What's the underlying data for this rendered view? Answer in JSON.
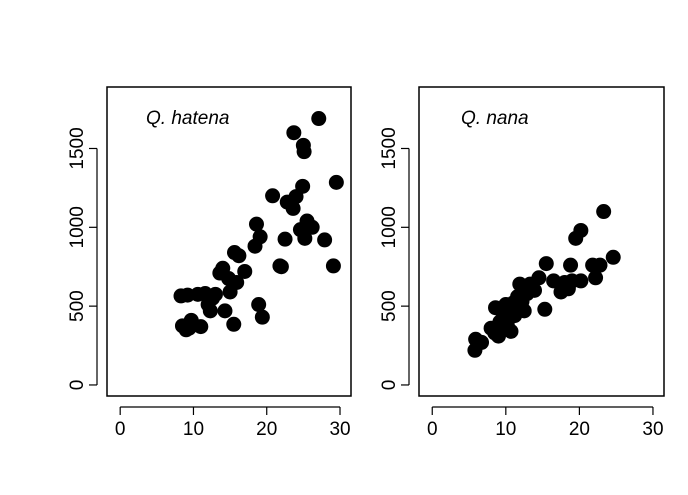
{
  "chart_data": [
    {
      "type": "scatter",
      "title": "Q. hatena",
      "xlabel": "",
      "ylabel": "",
      "xlim": [
        -1.8,
        31.5
      ],
      "ylim": [
        -70,
        1890
      ],
      "xticks": [
        0,
        10,
        20,
        30
      ],
      "yticks": [
        0,
        500,
        1000,
        1500
      ],
      "grid": false,
      "points": [
        [
          8.3,
          565
        ],
        [
          8.5,
          375
        ],
        [
          9.0,
          350
        ],
        [
          9.2,
          570
        ],
        [
          9.4,
          360
        ],
        [
          9.7,
          410
        ],
        [
          10.6,
          575
        ],
        [
          11.0,
          370
        ],
        [
          11.6,
          580
        ],
        [
          12.0,
          510
        ],
        [
          12.3,
          470
        ],
        [
          12.6,
          550
        ],
        [
          13.0,
          575
        ],
        [
          13.6,
          710
        ],
        [
          14.0,
          740
        ],
        [
          14.3,
          470
        ],
        [
          14.8,
          675
        ],
        [
          15.0,
          590
        ],
        [
          15.5,
          385
        ],
        [
          15.6,
          840
        ],
        [
          15.9,
          650
        ],
        [
          16.2,
          820
        ],
        [
          17.0,
          720
        ],
        [
          18.4,
          880
        ],
        [
          18.6,
          1020
        ],
        [
          18.9,
          510
        ],
        [
          19.1,
          940
        ],
        [
          19.4,
          430
        ],
        [
          20.8,
          1200
        ],
        [
          21.8,
          755
        ],
        [
          22.0,
          750
        ],
        [
          22.5,
          925
        ],
        [
          22.8,
          1160
        ],
        [
          23.6,
          1120
        ],
        [
          23.7,
          1600
        ],
        [
          24.0,
          1195
        ],
        [
          24.6,
          985
        ],
        [
          24.9,
          1260
        ],
        [
          25.0,
          1520
        ],
        [
          25.1,
          1480
        ],
        [
          25.2,
          930
        ],
        [
          25.5,
          1040
        ],
        [
          26.2,
          1000
        ],
        [
          27.1,
          1690
        ],
        [
          27.9,
          920
        ],
        [
          29.1,
          755
        ],
        [
          29.5,
          1285
        ]
      ]
    },
    {
      "type": "scatter",
      "title": "Q. nana",
      "xlabel": "",
      "ylabel": "",
      "xlim": [
        -1.8,
        31.5
      ],
      "ylim": [
        -70,
        1890
      ],
      "xticks": [
        0,
        10,
        20,
        30
      ],
      "yticks": [
        0,
        500,
        1000,
        1500
      ],
      "grid": false,
      "points": [
        [
          5.8,
          220
        ],
        [
          5.9,
          290
        ],
        [
          6.7,
          270
        ],
        [
          8.0,
          360
        ],
        [
          8.5,
          330
        ],
        [
          8.6,
          490
        ],
        [
          9.0,
          310
        ],
        [
          9.2,
          400
        ],
        [
          9.5,
          470
        ],
        [
          9.6,
          360
        ],
        [
          9.9,
          430
        ],
        [
          10.0,
          510
        ],
        [
          10.2,
          380
        ],
        [
          10.5,
          460
        ],
        [
          10.7,
          340
        ],
        [
          11.0,
          520
        ],
        [
          11.2,
          440
        ],
        [
          11.5,
          500
        ],
        [
          11.6,
          560
        ],
        [
          11.9,
          640
        ],
        [
          12.2,
          530
        ],
        [
          12.5,
          470
        ],
        [
          12.6,
          610
        ],
        [
          12.9,
          580
        ],
        [
          13.3,
          640
        ],
        [
          13.9,
          600
        ],
        [
          14.5,
          680
        ],
        [
          15.3,
          480
        ],
        [
          15.5,
          770
        ],
        [
          16.5,
          660
        ],
        [
          17.5,
          590
        ],
        [
          18.0,
          650
        ],
        [
          18.5,
          610
        ],
        [
          18.8,
          760
        ],
        [
          19.0,
          660
        ],
        [
          19.5,
          930
        ],
        [
          20.2,
          980
        ],
        [
          20.2,
          660
        ],
        [
          21.8,
          760
        ],
        [
          22.2,
          680
        ],
        [
          22.8,
          760
        ],
        [
          23.3,
          1100
        ],
        [
          24.6,
          810
        ]
      ]
    }
  ]
}
